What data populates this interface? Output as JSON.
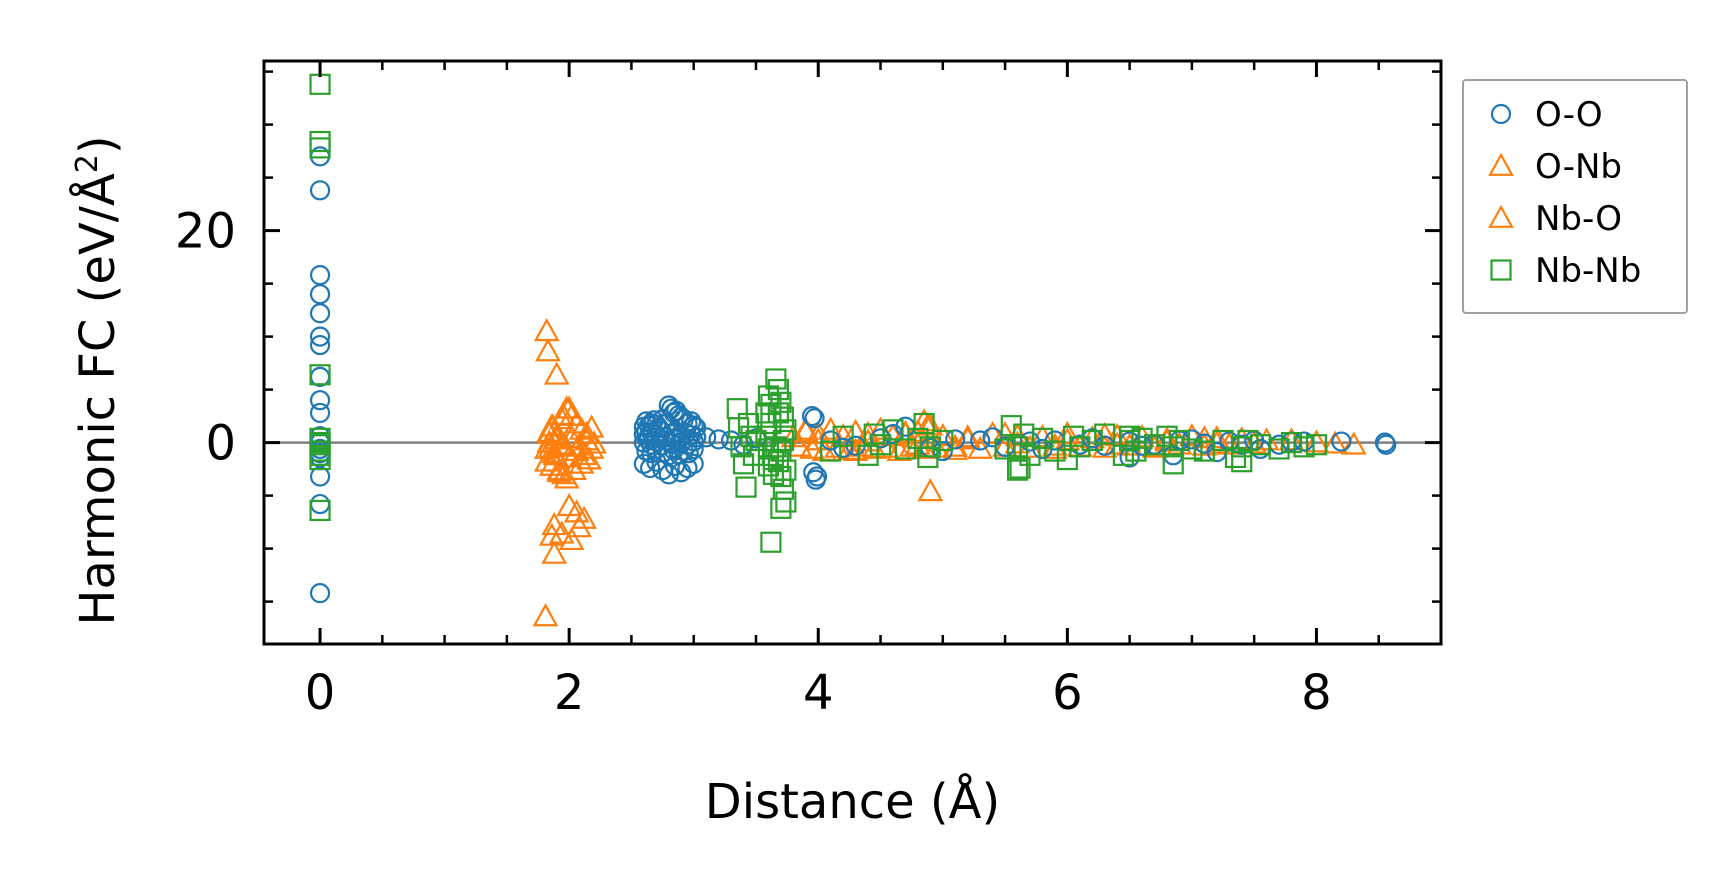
{
  "chart_data": {
    "type": "scatter",
    "xlabel": "Distance (Å)",
    "ylabel_main": "Harmonic FC (eV/Å",
    "ylabel_sup": "2",
    "ylabel_close": ")",
    "xlim": [
      -0.45,
      9.0
    ],
    "ylim": [
      -19,
      36
    ],
    "xticks": [
      0,
      2,
      4,
      6,
      8
    ],
    "xtick_labels": [
      "0",
      "2",
      "4",
      "6",
      "8"
    ],
    "xminor_step": 0.5,
    "yticks": [
      0,
      20
    ],
    "ytick_labels": [
      "0",
      "20"
    ],
    "yminor_step": 5,
    "reference_line_y": 0,
    "legend": {
      "placement": "outside-upper-right",
      "entries": [
        {
          "label": "O-O",
          "marker": "circle",
          "color": "#1f77b4"
        },
        {
          "label": "O-Nb",
          "marker": "triangle",
          "color": "#ff7f0e"
        },
        {
          "label": "Nb-O",
          "marker": "triangle",
          "color": "#ff7f0e"
        },
        {
          "label": "Nb-Nb",
          "marker": "square",
          "color": "#2ca02c"
        }
      ]
    },
    "series": [
      {
        "name": "O-O",
        "marker": "circle",
        "color": "#1f77b4",
        "x": [
          0,
          0,
          0,
          0,
          0,
          0,
          0,
          0,
          0,
          0,
          0,
          0,
          0,
          0,
          0,
          0,
          0,
          0,
          2.6,
          2.62,
          2.64,
          2.66,
          2.68,
          2.7,
          2.72,
          2.75,
          2.78,
          2.8,
          2.82,
          2.84,
          2.86,
          2.88,
          2.9,
          2.92,
          2.95,
          2.98,
          3.0,
          3.02,
          2.6,
          2.62,
          2.64,
          2.66,
          2.7,
          2.74,
          2.78,
          2.82,
          2.86,
          2.9,
          2.94,
          2.98,
          3.02,
          2.6,
          2.63,
          2.66,
          2.7,
          2.74,
          2.78,
          2.82,
          2.86,
          2.9,
          2.95,
          3.0,
          2.62,
          2.66,
          2.7,
          2.76,
          2.8,
          2.84,
          2.88,
          2.92,
          2.96,
          3.0,
          2.6,
          2.65,
          2.7,
          2.75,
          2.8,
          2.85,
          2.9,
          2.95,
          3.0,
          3.1,
          3.2,
          3.3,
          3.4,
          3.5,
          3.95,
          3.97,
          3.99,
          3.96,
          3.98,
          4.1,
          4.3,
          4.5,
          4.7,
          4.9,
          5.1,
          5.3,
          5.5,
          5.7,
          5.9,
          6.1,
          6.3,
          6.5,
          6.7,
          6.9,
          7.1,
          7.3,
          7.5,
          7.7,
          7.9,
          8.2,
          8.55,
          8.56,
          4.2,
          4.6,
          5.0,
          5.4,
          5.8,
          6.2,
          6.6,
          7.0,
          7.4,
          7.8,
          6.5,
          6.85,
          7.2,
          7.55
        ],
        "y": [
          27,
          23.8,
          15.8,
          14,
          12.2,
          10,
          9.2,
          6.2,
          4,
          2.8,
          0.6,
          0,
          -0.6,
          -1,
          -1.4,
          -3.2,
          -5.8,
          -14.2,
          1.5,
          2,
          1.6,
          1.8,
          2.1,
          1.7,
          1.4,
          2.2,
          1.8,
          3.5,
          3.2,
          2.8,
          3,
          2.6,
          2.4,
          2.2,
          1.8,
          2,
          1.6,
          1.4,
          0.8,
          1,
          0.6,
          0.9,
          0.7,
          1.1,
          0.5,
          0.8,
          1,
          0.6,
          0.9,
          0.7,
          0.5,
          0,
          0.3,
          -0.2,
          0.1,
          -0.3,
          0.2,
          -0.1,
          0.3,
          0,
          -0.2,
          0.1,
          -0.8,
          -1,
          -0.6,
          -0.9,
          -1.2,
          -0.7,
          -1.1,
          -0.8,
          -1,
          -0.6,
          -2,
          -2.4,
          -1.8,
          -2.6,
          -3,
          -2.2,
          -2.8,
          -2.4,
          -2,
          0.5,
          0.3,
          0.2,
          -0.2,
          0.4,
          2.5,
          2.3,
          -3.2,
          -2.8,
          -3.5,
          0.2,
          -0.3,
          0.4,
          1.5,
          -0.5,
          0.3,
          0.2,
          -0.4,
          0.1,
          0.2,
          -0.2,
          -0.3,
          0.1,
          -0.2,
          0.2,
          -0.1,
          0.1,
          0.2,
          -0.2,
          0.1,
          0.1,
          0,
          -0.2,
          -0.5,
          0.8,
          -0.8,
          0.5,
          -0.6,
          0.4,
          -0.3,
          0.3,
          -0.2,
          0.1,
          -1.4,
          -1.2,
          -0.9,
          -0.6
        ]
      },
      {
        "name": "O-Nb",
        "marker": "triangle",
        "color": "#ff7f0e",
        "x": [
          1.82,
          1.83,
          1.86,
          1.88,
          1.81,
          1.84,
          1.87,
          1.9,
          1.85,
          1.89,
          1.84,
          1.86,
          1.9,
          1.94,
          1.98,
          2.02,
          2.06,
          2.1,
          2.14,
          2.18,
          1.82,
          1.88,
          1.94,
          2.0,
          2.06,
          2.12,
          2.18,
          1.84,
          1.9,
          1.96,
          2.02,
          2.08,
          2.14,
          2.2,
          1.82,
          1.86,
          1.92,
          1.98,
          2.04,
          2.1,
          2.16,
          1.88,
          1.94,
          2.0,
          2.06,
          2.12,
          1.9,
          1.96,
          2.02,
          2.08,
          1.95,
          2.0,
          1.92,
          3.8,
          3.9,
          4.0,
          4.1,
          4.2,
          4.3,
          4.4,
          4.5,
          4.6,
          4.7,
          4.8,
          4.9,
          5.0,
          5.2,
          5.4,
          5.6,
          5.8,
          6.0,
          6.2,
          6.4,
          6.6,
          6.8,
          7.0,
          7.2,
          7.4,
          7.6,
          7.8,
          8.0,
          8.15,
          8.3,
          3.85,
          3.95,
          4.05,
          4.15,
          4.25,
          4.35,
          4.45,
          4.55,
          4.65,
          4.75,
          4.85,
          4.95,
          5.1,
          5.3,
          5.5,
          5.7,
          5.9,
          6.1,
          6.3,
          6.5,
          6.7,
          6.9,
          7.1,
          7.3,
          7.5,
          4.85,
          4.9,
          4.88
        ],
        "y": [
          10.5,
          8.6,
          -8.8,
          -10.5,
          -16.4,
          0.8,
          1.5,
          0.6,
          -0.5,
          -1.2,
          1,
          1.5,
          0.6,
          2.2,
          3.2,
          2.5,
          1.8,
          1.2,
          0.8,
          1.4,
          -0.6,
          -1,
          -0.4,
          -1.4,
          -0.8,
          -1.2,
          -0.6,
          0,
          0.3,
          -0.2,
          0.4,
          -0.3,
          0.2,
          -0.1,
          -1.8,
          -2.2,
          -2.8,
          -3.4,
          -2.6,
          -2,
          -1.6,
          -7.8,
          -8.6,
          -6,
          -6.6,
          -7.2,
          6.4,
          -3,
          -9.2,
          -8,
          2.6,
          3.2,
          -2.6,
          0.5,
          1,
          0.8,
          1.2,
          0.6,
          1,
          0.8,
          1.2,
          0.6,
          0.8,
          1,
          1.6,
          0.6,
          0.5,
          0.8,
          0.6,
          0.5,
          0.8,
          0.4,
          0.6,
          0.5,
          0.3,
          0.6,
          0.4,
          0.3,
          0.2,
          0.2,
          0,
          -0.1,
          -0.2,
          -0.4,
          -0.6,
          -0.8,
          -0.5,
          -0.7,
          -0.4,
          -0.6,
          -0.5,
          -0.8,
          -0.4,
          -0.6,
          -0.5,
          -0.4,
          -0.6,
          -0.4,
          -0.5,
          -0.3,
          -0.4,
          -0.5,
          -0.3,
          -0.4,
          -0.2,
          -0.3,
          -0.2,
          -0.1,
          2,
          -4.6,
          1.6
        ]
      },
      {
        "name": "Nb-O",
        "marker": "triangle",
        "color": "#ff7f0e",
        "x": [
          4.0,
          4.4,
          4.8,
          5.2,
          5.6,
          6.0,
          6.4,
          6.8,
          7.2,
          3.9,
          4.3,
          4.7,
          5.1,
          5.5,
          5.9,
          6.3,
          6.7,
          7.1
        ],
        "y": [
          0.2,
          0.1,
          -0.2,
          0.3,
          -0.1,
          0.2,
          -0.2,
          0.1,
          -0.1,
          1.2,
          -0.8,
          0.9,
          -0.7,
          0.8,
          -0.6,
          0.7,
          -0.5,
          0.4
        ]
      },
      {
        "name": "Nb-Nb",
        "marker": "square",
        "color": "#2ca02c",
        "x": [
          0,
          0,
          0,
          0,
          0,
          0,
          0,
          0,
          0,
          0,
          0,
          3.35,
          3.36,
          3.38,
          3.4,
          3.42,
          3.44,
          3.46,
          3.48,
          3.5,
          3.58,
          3.6,
          3.62,
          3.6,
          3.64,
          3.62,
          3.58,
          3.6,
          3.62,
          3.64,
          3.66,
          3.68,
          3.7,
          3.72,
          3.74,
          3.66,
          3.68,
          3.7,
          3.72,
          3.74,
          3.7,
          3.72,
          3.68,
          3.74,
          3.7,
          4.1,
          4.2,
          4.4,
          4.45,
          4.5,
          4.6,
          4.7,
          4.8,
          4.85,
          4.9,
          4.88,
          5.0,
          5.5,
          5.55,
          5.6,
          5.62,
          5.65,
          5.7,
          5.8,
          5.9,
          6.0,
          6.05,
          6.1,
          6.2,
          6.3,
          6.45,
          6.5,
          6.55,
          6.6,
          6.7,
          6.8,
          6.85,
          6.9,
          7.0,
          7.1,
          7.25,
          7.35,
          7.4,
          7.45,
          7.55,
          7.7,
          7.8,
          7.9,
          8.0,
          6.85,
          5.6,
          6.5,
          7.4
        ],
        "y": [
          33.8,
          28.4,
          27.8,
          6.4,
          0.4,
          0,
          -0.8,
          -1.6,
          -0.2,
          -6.4,
          -1.2,
          3.2,
          1.4,
          -0.4,
          -2,
          -4.2,
          1.8,
          0.6,
          -1.2,
          0.2,
          2.8,
          4.4,
          1.8,
          -2.2,
          -3,
          -9.4,
          0.6,
          -0.6,
          3.6,
          -1.6,
          6,
          5,
          3.8,
          2.4,
          1.2,
          -0.4,
          -1.8,
          -3.2,
          -4.4,
          -5.6,
          -6.2,
          0.2,
          2.8,
          -2.6,
          -0.8,
          -0.8,
          0.6,
          -1.2,
          0.8,
          -0.2,
          1.2,
          -0.6,
          0.4,
          1.8,
          -0.4,
          -1.4,
          0.2,
          -0.6,
          1.6,
          -0.4,
          -2.4,
          0.8,
          -1.2,
          0.4,
          -0.8,
          -1.6,
          0.6,
          -0.4,
          0.2,
          0.8,
          -1.2,
          0.2,
          -0.8,
          0.4,
          -0.2,
          0.6,
          -0.4,
          0.2,
          -0.6,
          -0.8,
          0.2,
          -1.4,
          -0.4,
          0.2,
          -0.2,
          -0.6,
          0,
          -0.4,
          -0.2,
          -2,
          -2.6,
          0.6,
          -1.8
        ]
      }
    ]
  }
}
